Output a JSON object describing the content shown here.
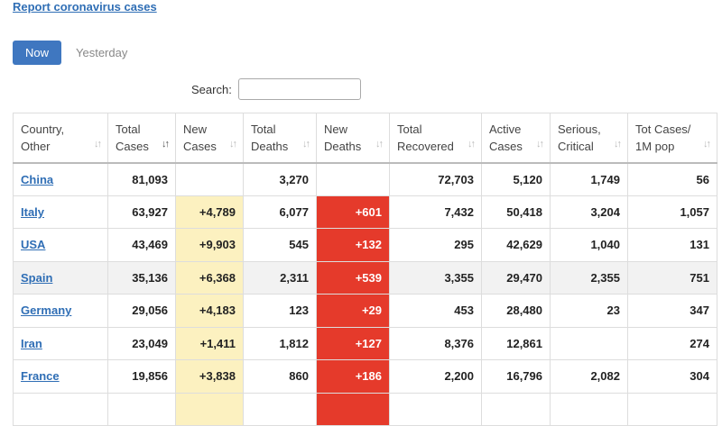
{
  "report_link": "Report coronavirus cases",
  "tabs": {
    "now": "Now",
    "yesterday": "Yesterday"
  },
  "search": {
    "label": "Search:",
    "value": ""
  },
  "columns": [
    {
      "line1": "Country,",
      "line2": "Other"
    },
    {
      "line1": "Total",
      "line2": "Cases"
    },
    {
      "line1": "New",
      "line2": "Cases"
    },
    {
      "line1": "Total",
      "line2": "Deaths"
    },
    {
      "line1": "New",
      "line2": "Deaths"
    },
    {
      "line1": "Total",
      "line2": "Recovered"
    },
    {
      "line1": "Active",
      "line2": "Cases"
    },
    {
      "line1": "Serious,",
      "line2": "Critical"
    },
    {
      "line1": "Tot Cases/",
      "line2": "1M pop"
    }
  ],
  "rows": [
    {
      "country": "China",
      "total_cases": "81,093",
      "new_cases": "",
      "total_deaths": "3,270",
      "new_deaths": "",
      "total_recovered": "72,703",
      "active_cases": "5,120",
      "serious_critical": "1,749",
      "per_million": "56"
    },
    {
      "country": "Italy",
      "total_cases": "63,927",
      "new_cases": "+4,789",
      "total_deaths": "6,077",
      "new_deaths": "+601",
      "total_recovered": "7,432",
      "active_cases": "50,418",
      "serious_critical": "3,204",
      "per_million": "1,057"
    },
    {
      "country": "USA",
      "total_cases": "43,469",
      "new_cases": "+9,903",
      "total_deaths": "545",
      "new_deaths": "+132",
      "total_recovered": "295",
      "active_cases": "42,629",
      "serious_critical": "1,040",
      "per_million": "131"
    },
    {
      "country": "Spain",
      "total_cases": "35,136",
      "new_cases": "+6,368",
      "total_deaths": "2,311",
      "new_deaths": "+539",
      "total_recovered": "3,355",
      "active_cases": "29,470",
      "serious_critical": "2,355",
      "per_million": "751"
    },
    {
      "country": "Germany",
      "total_cases": "29,056",
      "new_cases": "+4,183",
      "total_deaths": "123",
      "new_deaths": "+29",
      "total_recovered": "453",
      "active_cases": "28,480",
      "serious_critical": "23",
      "per_million": "347"
    },
    {
      "country": "Iran",
      "total_cases": "23,049",
      "new_cases": "+1,411",
      "total_deaths": "1,812",
      "new_deaths": "+127",
      "total_recovered": "8,376",
      "active_cases": "12,861",
      "serious_critical": "",
      "per_million": "274"
    },
    {
      "country": "France",
      "total_cases": "19,856",
      "new_cases": "+3,838",
      "total_deaths": "860",
      "new_deaths": "+186",
      "total_recovered": "2,200",
      "active_cases": "16,796",
      "serious_critical": "2,082",
      "per_million": "304"
    }
  ],
  "colors": {
    "link": "#2f6eb5",
    "tab_active": "#3f77c0",
    "new_cases_bg": "#fcf1c0",
    "new_deaths_bg": "#e53a2b"
  }
}
